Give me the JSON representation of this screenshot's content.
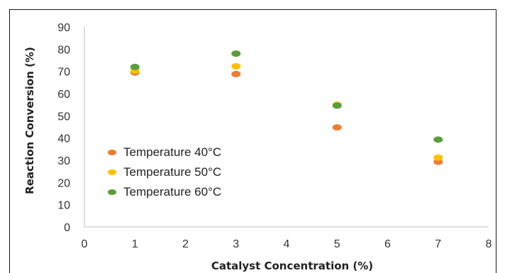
{
  "chart_data": {
    "type": "scatter",
    "title": "",
    "xlabel": "Catalyst Concentration (%)",
    "ylabel": "Reaction Conversion (%)",
    "xlim": [
      0,
      8
    ],
    "ylim": [
      0,
      90
    ],
    "xticks": [
      "0",
      "1",
      "2",
      "3",
      "4",
      "5",
      "6",
      "7",
      "8"
    ],
    "yticks": [
      "0",
      "10",
      "20",
      "30",
      "40",
      "50",
      "60",
      "70",
      "80",
      "90"
    ],
    "grid": false,
    "legend_position": "left-middle",
    "series": [
      {
        "name": "Temperature 40°C",
        "color": "#ED7D31",
        "x": [
          1,
          3,
          5,
          7
        ],
        "y": [
          69.5,
          68.8,
          44.8,
          29.3
        ]
      },
      {
        "name": "Temperature 50°C",
        "color": "#FFC000",
        "x": [
          1,
          3,
          5,
          7
        ],
        "y": [
          70.3,
          72.3,
          55.0,
          31.2
        ]
      },
      {
        "name": "Temperature 60°C",
        "color": "#5A9E3A",
        "x": [
          1,
          3,
          5,
          7
        ],
        "y": [
          72.0,
          78.0,
          54.6,
          39.3
        ]
      }
    ]
  }
}
